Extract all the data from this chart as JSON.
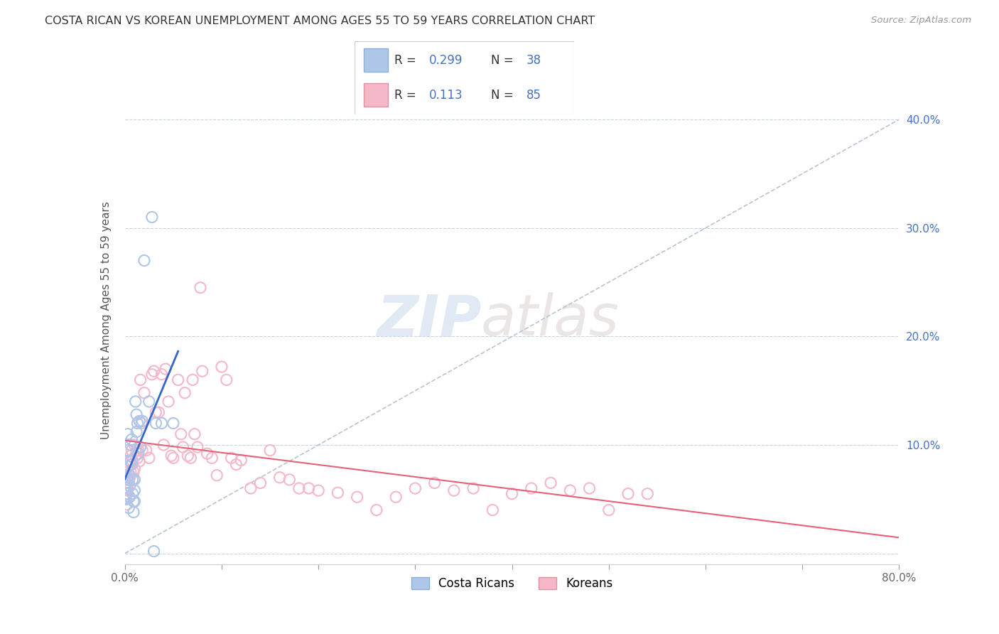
{
  "title": "COSTA RICAN VS KOREAN UNEMPLOYMENT AMONG AGES 55 TO 59 YEARS CORRELATION CHART",
  "source": "Source: ZipAtlas.com",
  "ylabel": "Unemployment Among Ages 55 to 59 years",
  "xlim": [
    0.0,
    0.8
  ],
  "ylim": [
    -0.01,
    0.44
  ],
  "xticks": [
    0.0,
    0.1,
    0.2,
    0.3,
    0.4,
    0.5,
    0.6,
    0.7,
    0.8
  ],
  "xticklabels": [
    "0.0%",
    "",
    "",
    "",
    "",
    "",
    "",
    "",
    "80.0%"
  ],
  "yticks": [
    0.0,
    0.1,
    0.2,
    0.3,
    0.4
  ],
  "yticklabels_right": [
    "",
    "10.0%",
    "20.0%",
    "30.0%",
    "40.0%"
  ],
  "cr_R": "0.299",
  "cr_N": "38",
  "kr_R": "0.113",
  "kr_N": "85",
  "costa_rican_color": "#aec6e8",
  "korean_color": "#f4b8c8",
  "trendline_cr_color": "#3366cc",
  "trendline_kr_color": "#e8607a",
  "ref_line_color": "#b8c4d4",
  "watermark_zip": "ZIP",
  "watermark_atlas": "atlas",
  "costa_rican_x": [
    0.001,
    0.001,
    0.002,
    0.002,
    0.003,
    0.003,
    0.003,
    0.004,
    0.004,
    0.005,
    0.005,
    0.005,
    0.006,
    0.006,
    0.007,
    0.007,
    0.008,
    0.008,
    0.009,
    0.009,
    0.01,
    0.01,
    0.01,
    0.011,
    0.012,
    0.012,
    0.013,
    0.014,
    0.015,
    0.016,
    0.018,
    0.02,
    0.025,
    0.028,
    0.03,
    0.032,
    0.038,
    0.05
  ],
  "costa_rican_y": [
    0.065,
    0.05,
    0.07,
    0.055,
    0.08,
    0.095,
    0.11,
    0.068,
    0.042,
    0.072,
    0.062,
    0.052,
    0.1,
    0.085,
    0.105,
    0.082,
    0.068,
    0.055,
    0.048,
    0.038,
    0.068,
    0.058,
    0.048,
    0.14,
    0.128,
    0.112,
    0.12,
    0.092,
    0.122,
    0.098,
    0.122,
    0.27,
    0.14,
    0.31,
    0.002,
    0.12,
    0.12,
    0.12
  ],
  "korean_x": [
    0.001,
    0.001,
    0.002,
    0.002,
    0.002,
    0.003,
    0.003,
    0.004,
    0.004,
    0.004,
    0.005,
    0.005,
    0.006,
    0.006,
    0.007,
    0.008,
    0.008,
    0.009,
    0.01,
    0.01,
    0.011,
    0.012,
    0.013,
    0.014,
    0.015,
    0.016,
    0.017,
    0.018,
    0.02,
    0.022,
    0.025,
    0.028,
    0.03,
    0.032,
    0.035,
    0.038,
    0.04,
    0.042,
    0.045,
    0.048,
    0.05,
    0.055,
    0.058,
    0.06,
    0.062,
    0.065,
    0.068,
    0.07,
    0.072,
    0.075,
    0.078,
    0.08,
    0.085,
    0.09,
    0.095,
    0.1,
    0.105,
    0.11,
    0.115,
    0.12,
    0.13,
    0.14,
    0.15,
    0.16,
    0.17,
    0.18,
    0.19,
    0.2,
    0.22,
    0.24,
    0.26,
    0.28,
    0.3,
    0.32,
    0.34,
    0.36,
    0.38,
    0.4,
    0.42,
    0.44,
    0.46,
    0.48,
    0.5,
    0.52,
    0.54
  ],
  "korean_y": [
    0.065,
    0.05,
    0.072,
    0.058,
    0.045,
    0.075,
    0.06,
    0.08,
    0.065,
    0.052,
    0.085,
    0.07,
    0.09,
    0.075,
    0.095,
    0.085,
    0.068,
    0.075,
    0.1,
    0.078,
    0.09,
    0.095,
    0.088,
    0.095,
    0.085,
    0.16,
    0.12,
    0.095,
    0.148,
    0.095,
    0.088,
    0.165,
    0.168,
    0.13,
    0.13,
    0.165,
    0.1,
    0.17,
    0.14,
    0.09,
    0.088,
    0.16,
    0.11,
    0.098,
    0.148,
    0.09,
    0.088,
    0.16,
    0.11,
    0.098,
    0.245,
    0.168,
    0.092,
    0.088,
    0.072,
    0.172,
    0.16,
    0.088,
    0.082,
    0.086,
    0.06,
    0.065,
    0.095,
    0.07,
    0.068,
    0.06,
    0.06,
    0.058,
    0.056,
    0.052,
    0.04,
    0.052,
    0.06,
    0.065,
    0.058,
    0.06,
    0.04,
    0.055,
    0.06,
    0.065,
    0.058,
    0.06,
    0.04,
    0.055,
    0.055
  ]
}
